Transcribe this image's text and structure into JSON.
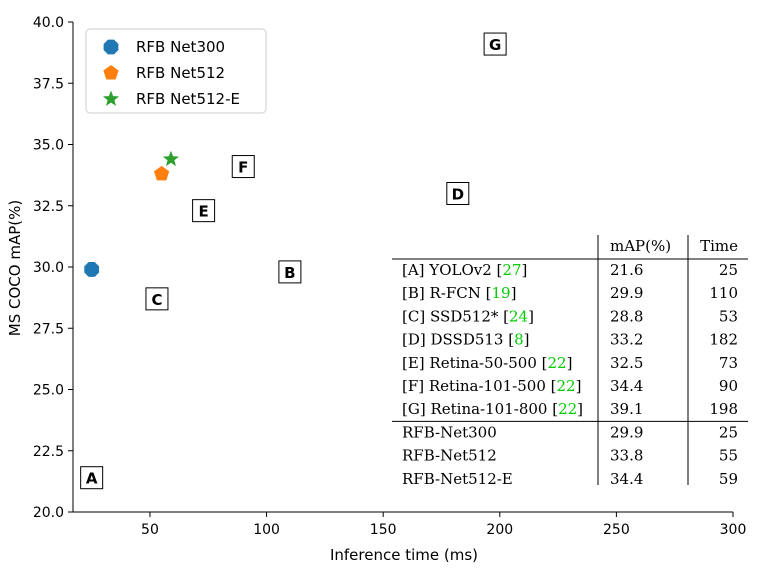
{
  "chart_data": {
    "type": "scatter",
    "title": "",
    "xlabel": "Inference time (ms)",
    "ylabel": "MS COCO mAP(%)",
    "xlim": [
      17,
      300
    ],
    "ylim": [
      20.0,
      40.0
    ],
    "xticks": [
      50,
      100,
      150,
      200,
      250,
      300
    ],
    "yticks": [
      20.0,
      22.5,
      25.0,
      27.5,
      30.0,
      32.5,
      35.0,
      37.5,
      40.0
    ],
    "grid": false,
    "legend": "top-left",
    "series": [
      {
        "name": "RFB Net300",
        "marker": "octagon",
        "color": "#1f77b4",
        "x": [
          25
        ],
        "y": [
          29.9
        ]
      },
      {
        "name": "RFB Net512",
        "marker": "pentagon",
        "color": "#ff7f0e",
        "x": [
          55
        ],
        "y": [
          33.8
        ]
      },
      {
        "name": "RFB Net512-E",
        "marker": "star",
        "color": "#2ca02c",
        "x": [
          59
        ],
        "y": [
          34.4
        ]
      }
    ],
    "point_labels": [
      {
        "label": "A",
        "x": 25,
        "y": 21.4
      },
      {
        "label": "B",
        "x": 110,
        "y": 29.8
      },
      {
        "label": "C",
        "x": 53,
        "y": 28.7
      },
      {
        "label": "D",
        "x": 182,
        "y": 33.0
      },
      {
        "label": "E",
        "x": 73,
        "y": 32.3
      },
      {
        "label": "F",
        "x": 90,
        "y": 34.1
      },
      {
        "label": "G",
        "x": 198,
        "y": 39.1
      }
    ],
    "table": {
      "headers": [
        "",
        "mAP(%)",
        "Time"
      ],
      "rows": [
        {
          "prefix": "[A] YOLOv2 [",
          "ref": "27",
          "suffix": "]",
          "map": "21.6",
          "time": "25"
        },
        {
          "prefix": "[B] R-FCN [",
          "ref": "19",
          "suffix": "]",
          "map": "29.9",
          "time": "110"
        },
        {
          "prefix": "[C] SSD512* [",
          "ref": "24",
          "suffix": "]",
          "map": "28.8",
          "time": "53"
        },
        {
          "prefix": "[D] DSSD513 [",
          "ref": "8",
          "suffix": "]",
          "map": "33.2",
          "time": "182"
        },
        {
          "prefix": "[E] Retina-50-500 [",
          "ref": "22",
          "suffix": "]",
          "map": "32.5",
          "time": "73"
        },
        {
          "prefix": "[F] Retina-101-500 [",
          "ref": "22",
          "suffix": "]",
          "map": "34.4",
          "time": "90"
        },
        {
          "prefix": "[G] Retina-101-800 [",
          "ref": "22",
          "suffix": "]",
          "map": "39.1",
          "time": "198"
        },
        {
          "prefix": "RFB-Net300",
          "ref": "",
          "suffix": "",
          "map": "29.9",
          "time": "25"
        },
        {
          "prefix": "RFB-Net512",
          "ref": "",
          "suffix": "",
          "map": "33.8",
          "time": "55"
        },
        {
          "prefix": "RFB-Net512-E",
          "ref": "",
          "suffix": "",
          "map": "34.4",
          "time": "59"
        }
      ],
      "ref_color": "#00cc00"
    }
  }
}
